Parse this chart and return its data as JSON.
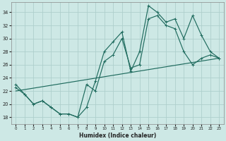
{
  "xlabel": "Humidex (Indice chaleur)",
  "bg_color": "#cde8e5",
  "grid_color": "#aecfcc",
  "line_color": "#1f6b5e",
  "xlim": [
    -0.5,
    23.5
  ],
  "ylim": [
    17,
    35.5
  ],
  "yticks": [
    18,
    20,
    22,
    24,
    26,
    28,
    30,
    32,
    34
  ],
  "xticks": [
    0,
    1,
    2,
    3,
    4,
    5,
    6,
    7,
    8,
    9,
    10,
    11,
    12,
    13,
    14,
    15,
    16,
    17,
    18,
    19,
    20,
    21,
    22,
    23
  ],
  "line1_x": [
    0,
    1,
    2,
    3,
    4,
    5,
    6,
    7,
    8,
    9,
    10,
    11,
    12,
    13,
    14,
    15,
    16,
    17,
    18,
    19,
    20,
    21,
    22,
    23
  ],
  "line1_y": [
    23.0,
    21.5,
    20.0,
    20.5,
    19.5,
    18.5,
    18.5,
    18.0,
    19.5,
    23.5,
    28.0,
    29.5,
    31.0,
    25.0,
    28.0,
    35.0,
    34.0,
    32.5,
    33.0,
    30.0,
    33.5,
    30.5,
    28.0,
    27.0
  ],
  "line2_x": [
    0,
    1,
    2,
    3,
    4,
    5,
    6,
    7,
    8,
    9,
    10,
    11,
    12,
    13,
    14,
    15,
    16,
    17,
    18,
    19,
    20,
    21,
    22,
    23
  ],
  "line2_y": [
    22.5,
    21.5,
    20.0,
    20.5,
    19.5,
    18.5,
    18.5,
    18.0,
    23.0,
    22.0,
    26.5,
    27.5,
    30.0,
    25.5,
    26.0,
    33.0,
    33.5,
    32.0,
    31.5,
    28.0,
    26.0,
    27.0,
    27.5,
    27.0
  ],
  "line3_x": [
    0,
    23
  ],
  "line3_y": [
    22.0,
    27.0
  ]
}
